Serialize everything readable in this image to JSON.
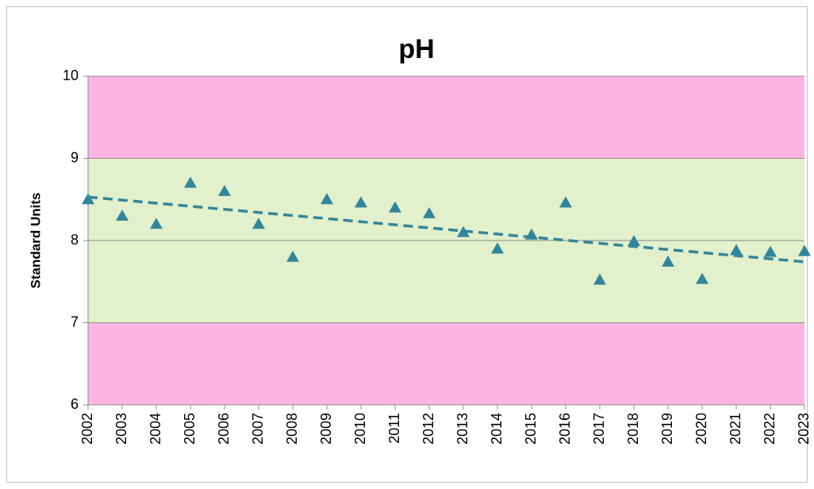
{
  "chart_data": {
    "type": "scatter",
    "title": "pH",
    "y_label": "Standard Units",
    "x": [
      2002,
      2003,
      2004,
      2005,
      2006,
      2007,
      2008,
      2009,
      2010,
      2011,
      2012,
      2013,
      2014,
      2015,
      2016,
      2017,
      2018,
      2019,
      2020,
      2021,
      2022,
      2023
    ],
    "series": [
      {
        "name": "pH",
        "color": "#31869b",
        "values": [
          8.5,
          8.3,
          8.2,
          8.7,
          8.6,
          8.2,
          7.8,
          8.5,
          8.46,
          8.4,
          8.33,
          8.1,
          7.9,
          8.07,
          8.46,
          7.52,
          7.99,
          7.74,
          7.53,
          7.88,
          7.86,
          7.87
        ]
      }
    ],
    "trendline": {
      "x": [
        2002,
        2023
      ],
      "values": [
        8.53,
        7.74
      ],
      "color": "#31869b"
    },
    "bands": [
      {
        "range": [
          9,
          10
        ],
        "color": "#fdb4e3"
      },
      {
        "range": [
          7,
          9
        ],
        "color": "#e2f0cb"
      },
      {
        "range": [
          6,
          7
        ],
        "color": "#fdb4e3"
      }
    ],
    "xlim": [
      2002,
      2023
    ],
    "xticks": [
      2002,
      2003,
      2004,
      2005,
      2006,
      2007,
      2008,
      2009,
      2010,
      2011,
      2012,
      2013,
      2014,
      2015,
      2016,
      2017,
      2018,
      2019,
      2020,
      2021,
      2022,
      2023
    ],
    "ylim": [
      6,
      10
    ],
    "yticks": [
      6,
      7,
      8,
      9,
      10
    ],
    "grid": true
  }
}
